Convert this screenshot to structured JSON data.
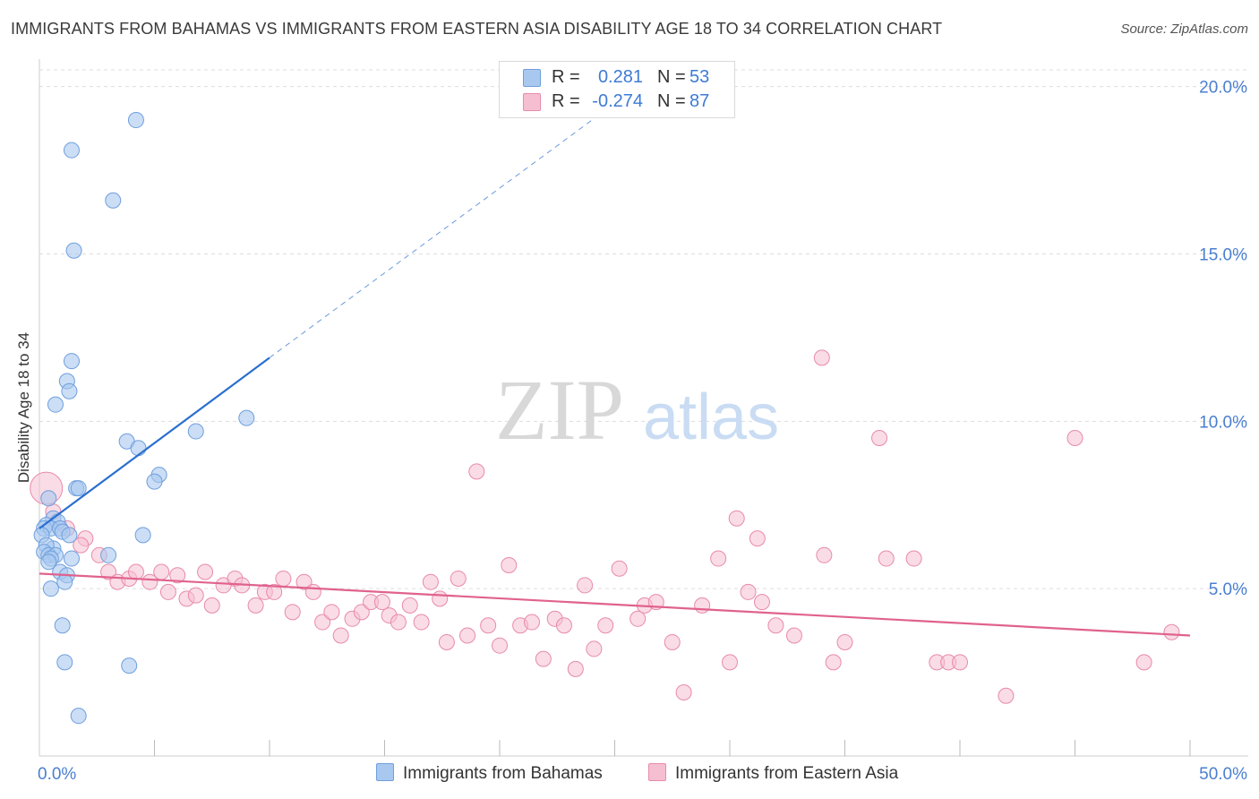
{
  "header": {
    "title": "IMMIGRANTS FROM BAHAMAS VS IMMIGRANTS FROM EASTERN ASIA DISABILITY AGE 18 TO 34 CORRELATION CHART",
    "source": "Source: ZipAtlas.com"
  },
  "watermark": {
    "zip": "ZIP",
    "atlas": "atlas"
  },
  "legend": {
    "rows": [
      {
        "r_label": "R =",
        "r_value": "0.281",
        "n_label": "N =",
        "n_value": "53"
      },
      {
        "r_label": "R =",
        "r_value": "-0.274",
        "n_label": "N =",
        "n_value": "87"
      }
    ]
  },
  "colors": {
    "blue_fill": "#a9c8f0",
    "blue_stroke": "#6f9fdc",
    "blue_line": "#2a6fcf",
    "pink_fill": "#f6bfd1",
    "pink_stroke": "#e88aab",
    "pink_line": "#e0628e",
    "tick_text": "#4a7fd0",
    "grid": "#dddddd"
  },
  "chart_data": {
    "type": "scatter",
    "title": "IMMIGRANTS FROM BAHAMAS VS IMMIGRANTS FROM EASTERN ASIA DISABILITY AGE 18 TO 34 CORRELATION CHART",
    "xlabel": "",
    "ylabel": "Disability Age 18 to 34",
    "xlim": [
      0,
      50
    ],
    "ylim": [
      0,
      20.5
    ],
    "x_tick_labels": [
      "0.0%",
      "50.0%"
    ],
    "y_ticks": [
      5,
      10,
      15,
      20
    ],
    "y_tick_labels": [
      "5.0%",
      "10.0%",
      "15.0%",
      "20.0%"
    ],
    "grid": true,
    "legend_position": "top-center",
    "series": [
      {
        "name": "Immigrants from Bahamas",
        "color": "#a9c8f0",
        "trend": {
          "x": [
            0,
            10
          ],
          "y": [
            6.8,
            11.9
          ],
          "dashed_extension_to": [
            25,
            19.5
          ]
        },
        "points": [
          [
            4.2,
            19.0
          ],
          [
            1.4,
            18.1
          ],
          [
            3.2,
            16.6
          ],
          [
            1.5,
            15.1
          ],
          [
            1.4,
            11.8
          ],
          [
            1.2,
            11.2
          ],
          [
            1.3,
            10.9
          ],
          [
            0.7,
            10.5
          ],
          [
            9.0,
            10.1
          ],
          [
            6.8,
            9.7
          ],
          [
            3.8,
            9.4
          ],
          [
            4.3,
            9.2
          ],
          [
            5.2,
            8.4
          ],
          [
            5.0,
            8.2
          ],
          [
            1.6,
            8.0
          ],
          [
            1.7,
            8.0
          ],
          [
            0.4,
            7.7
          ],
          [
            0.6,
            7.1
          ],
          [
            0.8,
            7.0
          ],
          [
            0.3,
            6.9
          ],
          [
            0.2,
            6.8
          ],
          [
            0.5,
            6.8
          ],
          [
            0.9,
            6.8
          ],
          [
            1.0,
            6.7
          ],
          [
            0.1,
            6.6
          ],
          [
            1.3,
            6.6
          ],
          [
            4.5,
            6.6
          ],
          [
            0.6,
            6.2
          ],
          [
            0.3,
            6.3
          ],
          [
            0.2,
            6.1
          ],
          [
            0.4,
            6.0
          ],
          [
            0.7,
            6.0
          ],
          [
            0.5,
            5.9
          ],
          [
            3.0,
            6.0
          ],
          [
            1.4,
            5.9
          ],
          [
            0.4,
            5.8
          ],
          [
            0.9,
            5.5
          ],
          [
            1.2,
            5.4
          ],
          [
            1.1,
            5.2
          ],
          [
            0.5,
            5.0
          ],
          [
            1.0,
            3.9
          ],
          [
            1.1,
            2.8
          ],
          [
            3.9,
            2.7
          ],
          [
            1.7,
            1.2
          ]
        ]
      },
      {
        "name": "Immigrants from Eastern Asia",
        "color": "#f6bfd1",
        "trend": {
          "x": [
            0,
            50
          ],
          "y": [
            5.45,
            3.6
          ]
        },
        "points": [
          [
            0.3,
            8.0
          ],
          [
            0.6,
            7.3
          ],
          [
            1.2,
            6.8
          ],
          [
            2.0,
            6.5
          ],
          [
            1.8,
            6.3
          ],
          [
            2.6,
            6.0
          ],
          [
            3.0,
            5.5
          ],
          [
            3.4,
            5.2
          ],
          [
            3.9,
            5.3
          ],
          [
            4.2,
            5.5
          ],
          [
            4.8,
            5.2
          ],
          [
            5.3,
            5.5
          ],
          [
            5.6,
            4.9
          ],
          [
            6.0,
            5.4
          ],
          [
            6.4,
            4.7
          ],
          [
            6.8,
            4.8
          ],
          [
            7.2,
            5.5
          ],
          [
            7.5,
            4.5
          ],
          [
            8.0,
            5.1
          ],
          [
            8.5,
            5.3
          ],
          [
            8.8,
            5.1
          ],
          [
            9.4,
            4.5
          ],
          [
            9.8,
            4.9
          ],
          [
            10.2,
            4.9
          ],
          [
            10.6,
            5.3
          ],
          [
            11.0,
            4.3
          ],
          [
            11.5,
            5.2
          ],
          [
            11.9,
            4.9
          ],
          [
            12.3,
            4.0
          ],
          [
            12.7,
            4.3
          ],
          [
            13.1,
            3.6
          ],
          [
            13.6,
            4.1
          ],
          [
            14.0,
            4.3
          ],
          [
            14.4,
            4.6
          ],
          [
            14.9,
            4.6
          ],
          [
            15.2,
            4.2
          ],
          [
            15.6,
            4.0
          ],
          [
            16.1,
            4.5
          ],
          [
            16.6,
            4.0
          ],
          [
            17.0,
            5.2
          ],
          [
            17.4,
            4.7
          ],
          [
            17.7,
            3.4
          ],
          [
            18.2,
            5.3
          ],
          [
            18.6,
            3.6
          ],
          [
            19.0,
            8.5
          ],
          [
            19.5,
            3.9
          ],
          [
            20.0,
            3.3
          ],
          [
            20.4,
            5.7
          ],
          [
            20.9,
            3.9
          ],
          [
            21.4,
            4.0
          ],
          [
            21.9,
            2.9
          ],
          [
            22.4,
            4.1
          ],
          [
            22.8,
            3.9
          ],
          [
            23.3,
            2.6
          ],
          [
            23.7,
            5.1
          ],
          [
            24.1,
            3.2
          ],
          [
            24.6,
            3.9
          ],
          [
            25.2,
            5.6
          ],
          [
            26.0,
            4.1
          ],
          [
            26.3,
            4.5
          ],
          [
            26.8,
            4.6
          ],
          [
            27.5,
            3.4
          ],
          [
            28.0,
            1.9
          ],
          [
            28.8,
            4.5
          ],
          [
            29.5,
            5.9
          ],
          [
            30.0,
            2.8
          ],
          [
            30.3,
            7.1
          ],
          [
            30.8,
            4.9
          ],
          [
            31.2,
            6.5
          ],
          [
            31.4,
            4.6
          ],
          [
            32.0,
            3.9
          ],
          [
            32.8,
            3.6
          ],
          [
            34.0,
            11.9
          ],
          [
            34.1,
            6.0
          ],
          [
            34.5,
            2.8
          ],
          [
            35.0,
            3.4
          ],
          [
            36.5,
            9.5
          ],
          [
            36.8,
            5.9
          ],
          [
            38.0,
            5.9
          ],
          [
            39.0,
            2.8
          ],
          [
            39.5,
            2.8
          ],
          [
            40.0,
            2.8
          ],
          [
            42.0,
            1.8
          ],
          [
            45.0,
            9.5
          ],
          [
            48.0,
            2.8
          ],
          [
            49.2,
            3.7
          ]
        ]
      }
    ]
  }
}
